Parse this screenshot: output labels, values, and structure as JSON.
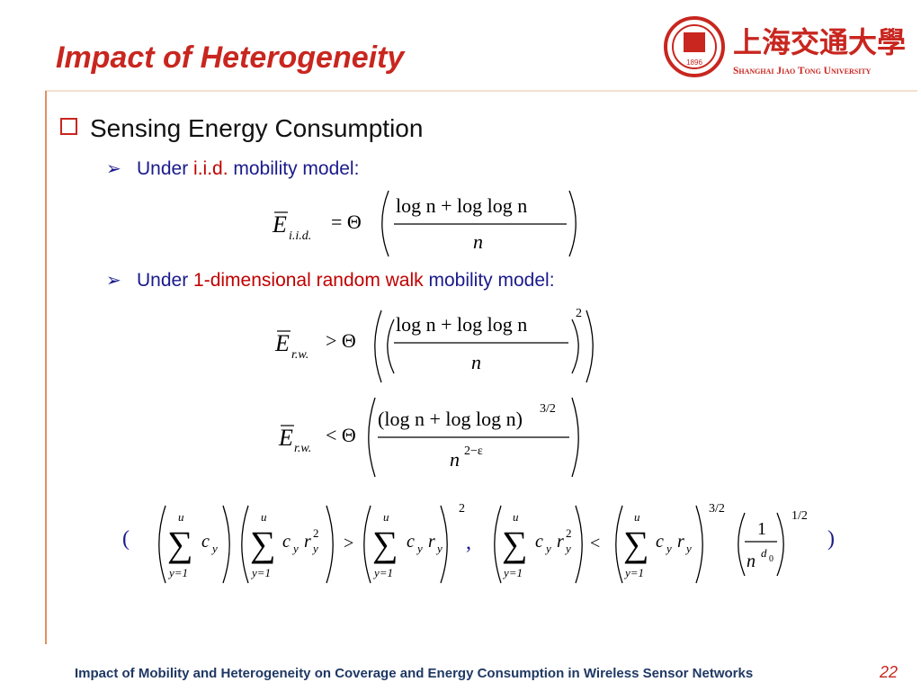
{
  "title": "Impact of Heterogeneity",
  "logo": {
    "chinese": "上海交通大學",
    "english": "Shanghai Jiao Tong University",
    "year": "1896"
  },
  "bullet": "Sensing Energy Consumption",
  "subbullets": [
    {
      "before": "Under ",
      "highlight": "i.i.d.",
      "after": " mobility model:"
    },
    {
      "before": "Under ",
      "highlight": "1-dimensional random walk",
      "after": " mobility model:"
    }
  ],
  "formulas": {
    "E": "E",
    "sub_iid": "i.i.d.",
    "sub_rw": "r.w.",
    "eq_theta": "= Θ",
    "gt_theta": "> Θ",
    "lt_theta": "< Θ",
    "num": "log n + log log n",
    "num_paren": "(log n + log log n)",
    "den": "n",
    "exp_2": "2",
    "exp_32": "3/2",
    "exp_2eps": "2−ε"
  },
  "condition": {
    "open": "(",
    "close": ")",
    "sep": ",",
    "sigma": "∑",
    "upper": "u",
    "lower": "y=1",
    "c": "c",
    "y": "y",
    "r": "r",
    "sq": "2",
    "gt": ">",
    "lt": "<",
    "one": "1",
    "n": "n",
    "d": "d",
    "zero": "0",
    "exp2": "2",
    "exp32": "3/2",
    "exp12": "1/2"
  },
  "footer": "Impact of Mobility and Heterogeneity on Coverage and Energy Consumption in Wireless Sensor Networks",
  "page": "22"
}
